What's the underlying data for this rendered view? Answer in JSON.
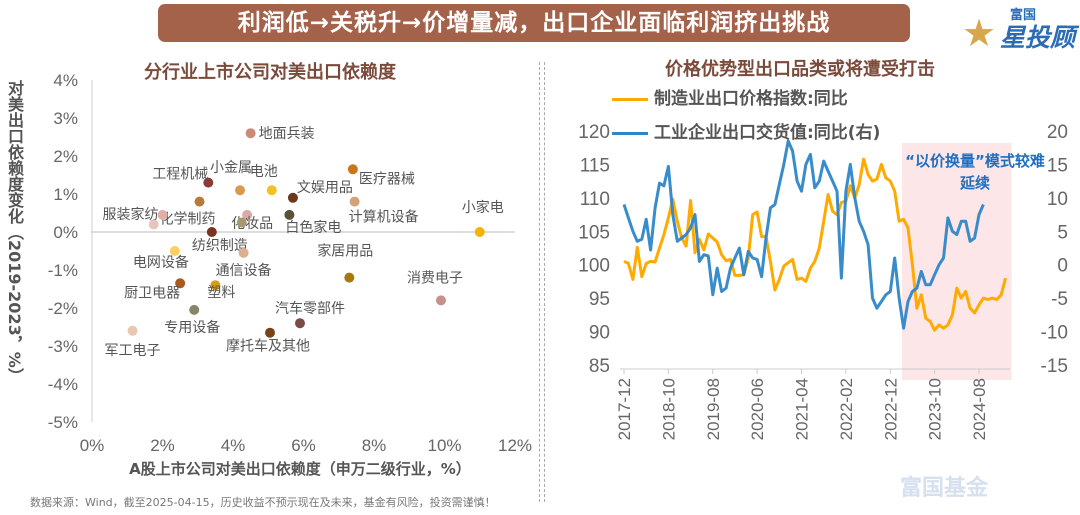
{
  "banner": {
    "title": "利润低→关税升→价增量减，出口企业面临利润挤出挑战"
  },
  "logo": {
    "small": "富国",
    "big": "星投顾",
    "icon": "star-icon"
  },
  "watermark": "富国基金",
  "footer": "数据来源：Wind，截至2025-04-15，历史收益不预示现在及未来，基金有风险，投资需谨慎！",
  "chart_data": [
    {
      "type": "scatter",
      "title": "分行业上市公司对美出口依赖度",
      "xlabel": "A股上市公司对美出口依赖度（申万二级行业，%）",
      "ylabel": "对美出口依赖度变化（2019-2023，%）",
      "xlim": [
        0,
        12
      ],
      "ylim": [
        -5,
        4
      ],
      "xticks": [
        "0%",
        "2%",
        "4%",
        "6%",
        "8%",
        "10%",
        "12%"
      ],
      "yticks": [
        "4%",
        "3%",
        "2%",
        "1%",
        "0%",
        "-1%",
        "-2%",
        "-3%",
        "-4%",
        "-5%"
      ],
      "grid": false,
      "points": [
        {
          "label": "地面兵装",
          "x": 4.5,
          "y": 2.6,
          "color": "#c98a78"
        },
        {
          "label": "医疗器械",
          "x": 7.4,
          "y": 1.65,
          "color": "#c8761e"
        },
        {
          "label": "工程机械",
          "x": 3.3,
          "y": 1.3,
          "color": "#8b3a3a"
        },
        {
          "label": "小金属",
          "x": 4.2,
          "y": 1.1,
          "color": "#d89a4e"
        },
        {
          "label": "电池",
          "x": 5.1,
          "y": 1.1,
          "color": "#f5c022"
        },
        {
          "label": "文娱用品",
          "x": 5.7,
          "y": 0.9,
          "color": "#6b3a1e"
        },
        {
          "label": "化学制药",
          "x": 3.05,
          "y": 0.8,
          "color": "#b87a3a"
        },
        {
          "label": "计算机设备",
          "x": 7.45,
          "y": 0.8,
          "color": "#d4a27a"
        },
        {
          "label": "化妆品",
          "x": 4.4,
          "y": 0.45,
          "color": "#d8aaa8"
        },
        {
          "label": "白色家电",
          "x": 5.6,
          "y": 0.45,
          "color": "#5a5238"
        },
        {
          "label": "服装家纺",
          "x": 2.0,
          "y": 0.45,
          "color": "#e0b0a8"
        },
        {
          "label": "",
          "x": 1.75,
          "y": 0.2,
          "color": "#e8c4bc"
        },
        {
          "label": "",
          "x": 4.25,
          "y": 0.25,
          "color": "#a89870"
        },
        {
          "label": "纺织制造",
          "x": 3.4,
          "y": 0.0,
          "color": "#7a3424"
        },
        {
          "label": "小家电",
          "x": 11.0,
          "y": 0.0,
          "color": "#f5b400"
        },
        {
          "label": "电网设备",
          "x": 2.35,
          "y": -0.5,
          "color": "#fcd060"
        },
        {
          "label": "通信设备",
          "x": 4.3,
          "y": -0.55,
          "color": "#dcb090"
        },
        {
          "label": "家居用品",
          "x": 7.3,
          "y": -1.2,
          "color": "#a87810"
        },
        {
          "label": "厨卫电器",
          "x": 2.5,
          "y": -1.35,
          "color": "#a85a20"
        },
        {
          "label": "塑料",
          "x": 3.5,
          "y": -1.4,
          "color": "#d8a010"
        },
        {
          "label": "消费电子",
          "x": 9.9,
          "y": -1.8,
          "color": "#c89088"
        },
        {
          "label": "专用设备",
          "x": 2.9,
          "y": -2.05,
          "color": "#8a8468"
        },
        {
          "label": "汽车零部件",
          "x": 5.9,
          "y": -2.4,
          "color": "#7a4a44"
        },
        {
          "label": "摩托车及其他",
          "x": 5.05,
          "y": -2.65,
          "color": "#7a4418"
        },
        {
          "label": "军工电子",
          "x": 1.15,
          "y": -2.6,
          "color": "#e8c8b0"
        }
      ]
    },
    {
      "type": "line",
      "title": "价格优势型出口品类或将遭受打击",
      "annotation": "“以价换量”模式较难延续",
      "highlight_range": [
        "2023-04",
        "2025-02"
      ],
      "xticks": [
        "2017-12",
        "2018-10",
        "2019-08",
        "2020-06",
        "2021-04",
        "2022-02",
        "2022-12",
        "2023-10",
        "2024-08"
      ],
      "ylim_left": [
        85,
        120
      ],
      "yticks_left": [
        "120",
        "115",
        "110",
        "105",
        "100",
        "95",
        "90",
        "85"
      ],
      "ylim_right": [
        -15,
        20
      ],
      "yticks_right": [
        "20",
        "15",
        "10",
        "5",
        "0",
        "-5",
        "-10",
        "-15"
      ],
      "start": "2017-12",
      "series": [
        {
          "name": "制造业出口价格指数:同比",
          "axis": "left",
          "color": "#ffaa00",
          "values": [
            100.5,
            100.2,
            97.8,
            102.6,
            98.2,
            100.2,
            100.5,
            100.4,
            102.5,
            104.5,
            107,
            109.8,
            106.5,
            104,
            102.8,
            109.6,
            101.8,
            103.8,
            102.2,
            104.6,
            104,
            103.4,
            101.5,
            100.6,
            100.8,
            98.4,
            98.4,
            98.5,
            101,
            107.5,
            107.9,
            104.2,
            104.2,
            100.5,
            96.2,
            97.8,
            99.8,
            100.3,
            100.8,
            97.8,
            98,
            97.5,
            99.5,
            100.5,
            102.5,
            106.5,
            110.5,
            108,
            107.5,
            109.3,
            109.5,
            111.8,
            110,
            112,
            115.8,
            113.5,
            112.5,
            112.8,
            115,
            113,
            112.5,
            111,
            106.5,
            106.8,
            105.5,
            100,
            93.5,
            95.5,
            92,
            91.5,
            90.2,
            91,
            90.5,
            91,
            92.5,
            96.5,
            95,
            96,
            93.5,
            92.8,
            94,
            95,
            94.8,
            95,
            94.8,
            95.5,
            98
          ]
        },
        {
          "name": "工业企业出口交货值:同比(右)",
          "axis": "right",
          "color": "#2e86c8",
          "values": [
            9,
            7,
            5,
            3.5,
            3.8,
            6.8,
            2.2,
            8.5,
            12.2,
            11.8,
            14.7,
            7.5,
            3.5,
            4,
            4.5,
            5.5,
            7.5,
            0.5,
            1.5,
            1.3,
            -4.5,
            -0.5,
            -4,
            -3.5,
            -0.5,
            1,
            2.5,
            -1.5,
            2,
            1,
            0.8,
            -1.8,
            4,
            8.5,
            9,
            12,
            15,
            18.5,
            17,
            12.5,
            11,
            15,
            16.5,
            11.5,
            12.5,
            15.5,
            14,
            12.5,
            11,
            -2,
            11,
            15,
            10,
            6.5,
            5,
            3,
            -5,
            -6.5,
            -5.5,
            -4.5,
            -4,
            1,
            -5,
            -9.5,
            -5.5,
            -4,
            -3.5,
            -1,
            -3,
            -3,
            -1.5,
            0,
            1,
            7,
            5,
            4.5,
            6.5,
            6.5,
            3.5,
            4,
            7.5,
            9
          ]
        }
      ]
    }
  ]
}
